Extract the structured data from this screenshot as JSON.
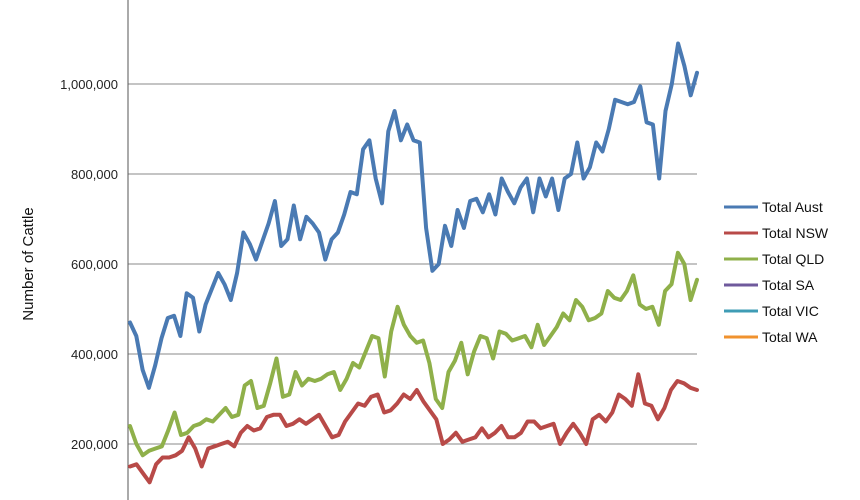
{
  "chart_data": {
    "type": "line",
    "title": "",
    "ylabel": "Number of Cattle",
    "ylim": [
      0,
      1100000
    ],
    "yticks": [
      {
        "value": 200000,
        "label": "200,000"
      },
      {
        "value": 400000,
        "label": "400,000"
      },
      {
        "value": 600000,
        "label": "600,000"
      },
      {
        "value": 800000,
        "label": "800,000"
      },
      {
        "value": 1000000,
        "label": "1,000,000"
      }
    ],
    "grid": true,
    "legend_position": "right",
    "series": [
      {
        "name": "Total Aust",
        "color": "#4a7ab3",
        "values": [
          470000,
          440000,
          365000,
          325000,
          375000,
          435000,
          480000,
          485000,
          440000,
          535000,
          525000,
          450000,
          510000,
          545000,
          580000,
          555000,
          520000,
          580000,
          670000,
          645000,
          610000,
          650000,
          690000,
          740000,
          640000,
          655000,
          730000,
          655000,
          705000,
          690000,
          670000,
          610000,
          655000,
          670000,
          710000,
          760000,
          755000,
          855000,
          875000,
          790000,
          735000,
          895000,
          940000,
          875000,
          910000,
          875000,
          870000,
          680000,
          585000,
          600000,
          685000,
          640000,
          720000,
          680000,
          740000,
          745000,
          715000,
          755000,
          710000,
          790000,
          760000,
          735000,
          770000,
          790000,
          715000,
          790000,
          750000,
          790000,
          720000,
          790000,
          800000,
          870000,
          790000,
          815000,
          870000,
          850000,
          900000,
          965000,
          960000,
          955000,
          960000,
          995000,
          915000,
          910000,
          790000,
          940000,
          1000000,
          1090000,
          1040000,
          975000,
          1025000
        ]
      },
      {
        "name": "Total NSW",
        "color": "#b84a48",
        "values": [
          150000,
          155000,
          135000,
          115000,
          155000,
          170000,
          170000,
          175000,
          185000,
          215000,
          190000,
          150000,
          190000,
          195000,
          200000,
          205000,
          195000,
          225000,
          240000,
          230000,
          235000,
          260000,
          265000,
          265000,
          240000,
          245000,
          255000,
          245000,
          255000,
          265000,
          240000,
          215000,
          220000,
          250000,
          270000,
          290000,
          285000,
          305000,
          310000,
          270000,
          275000,
          290000,
          310000,
          300000,
          320000,
          295000,
          275000,
          255000,
          200000,
          210000,
          225000,
          205000,
          210000,
          215000,
          235000,
          215000,
          225000,
          240000,
          215000,
          215000,
          225000,
          250000,
          250000,
          235000,
          240000,
          245000,
          200000,
          225000,
          245000,
          225000,
          200000,
          255000,
          265000,
          250000,
          270000,
          310000,
          300000,
          285000,
          355000,
          290000,
          285000,
          255000,
          280000,
          320000,
          340000,
          335000,
          325000,
          320000
        ]
      },
      {
        "name": "Total QLD",
        "color": "#8fb04a",
        "values": [
          240000,
          200000,
          175000,
          185000,
          190000,
          195000,
          230000,
          270000,
          220000,
          225000,
          240000,
          245000,
          255000,
          250000,
          265000,
          280000,
          260000,
          265000,
          330000,
          340000,
          280000,
          285000,
          335000,
          390000,
          305000,
          310000,
          360000,
          330000,
          345000,
          340000,
          345000,
          355000,
          360000,
          320000,
          345000,
          380000,
          370000,
          405000,
          440000,
          435000,
          350000,
          450000,
          505000,
          465000,
          440000,
          425000,
          430000,
          380000,
          300000,
          280000,
          360000,
          385000,
          425000,
          355000,
          405000,
          440000,
          435000,
          390000,
          450000,
          445000,
          430000,
          435000,
          440000,
          415000,
          465000,
          420000,
          440000,
          460000,
          490000,
          475000,
          520000,
          505000,
          475000,
          480000,
          490000,
          540000,
          525000,
          520000,
          540000,
          575000,
          510000,
          500000,
          505000,
          465000,
          540000,
          555000,
          625000,
          600000,
          520000,
          565000
        ]
      }
    ],
    "legend": [
      "Total Aust",
      "Total NSW",
      "Total QLD",
      "Total SA",
      "Total VIC",
      "Total WA"
    ],
    "legend_colors": [
      "#4a7ab3",
      "#b84a48",
      "#8fb04a",
      "#6f5a9c",
      "#3f9cb5",
      "#f0922e"
    ]
  }
}
